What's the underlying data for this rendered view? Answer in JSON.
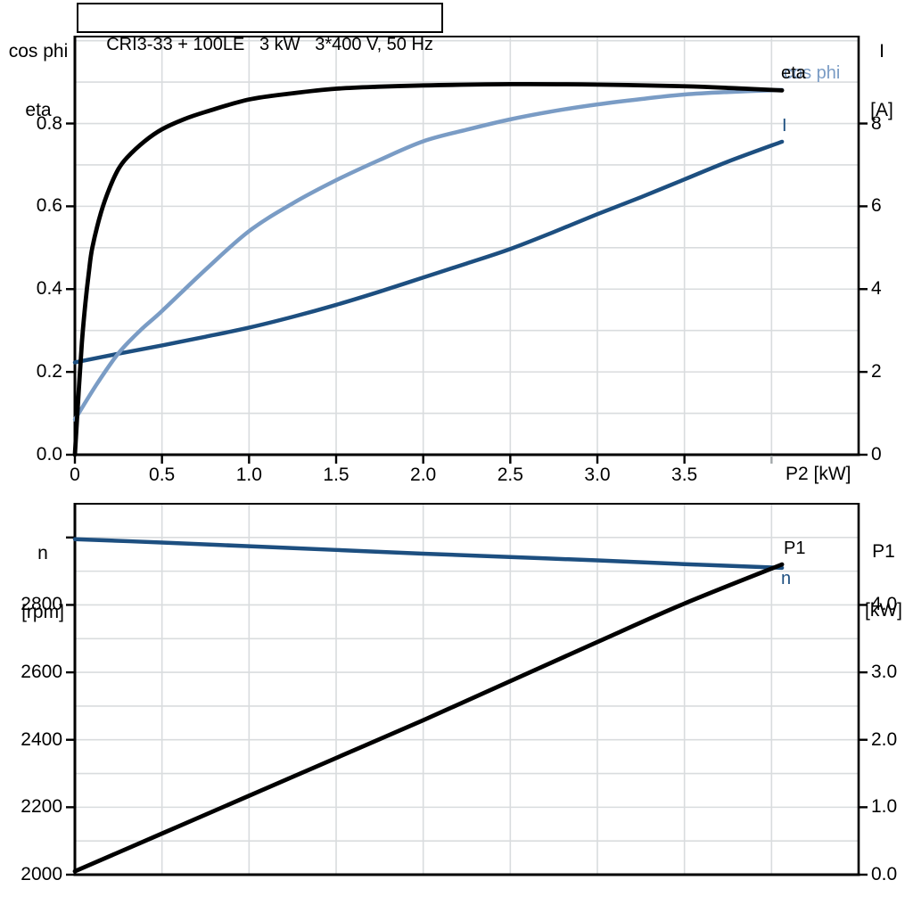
{
  "title_box": {
    "text": "CRI3-33 + 100LE   3 kW   3*400 V, 50 Hz"
  },
  "colors": {
    "black": "#000000",
    "dark_blue": "#1d4f80",
    "light_blue": "#7a9cc5",
    "grid": "#d9dcde",
    "gray_tick": "#a3a8ab",
    "background": "#ffffff"
  },
  "labels": {
    "eta": "eta",
    "cos_phi": "cos phi",
    "current": "I",
    "p1": "P1",
    "n": "n",
    "p2_axis": "P2 [kW]"
  },
  "chart_data": [
    {
      "id": "motor-efficiency-chart",
      "type": "line",
      "title": "CRI3-33 + 100LE   3 kW   3*400 V, 50 Hz",
      "grid": true,
      "x_axis": {
        "label": "P2 [kW]",
        "range": [
          0,
          4.5
        ],
        "grid_step": 0.5,
        "tick_values": [
          0,
          0.5,
          1,
          1.5,
          2,
          2.5,
          3,
          3.5
        ],
        "ticks": [
          "0",
          "0.5",
          "1.0",
          "1.5",
          "2.0",
          "2.5",
          "3.0",
          "3.5"
        ],
        "extra_tick_value": 4.0
      },
      "y_left": {
        "label_lines": [
          "cos phi",
          "eta"
        ],
        "range": [
          0,
          1.01
        ],
        "grid_step": 0.1,
        "tick_values": [
          0,
          0.2,
          0.4,
          0.6,
          0.8
        ],
        "ticks": [
          "0.0",
          "0.2",
          "0.4",
          "0.6",
          "0.8"
        ]
      },
      "y_right": {
        "label_lines": [
          "I",
          "[A]"
        ],
        "range": [
          0,
          10.1
        ],
        "tick_values": [
          0,
          2,
          4,
          6,
          8
        ],
        "ticks": [
          "0",
          "2",
          "4",
          "6",
          "8"
        ]
      },
      "series": [
        {
          "key": "I",
          "name": "I",
          "axis": "right",
          "unit": "A",
          "color_key": "dark_blue",
          "points": [
            [
              0,
              2.23
            ],
            [
              0.25,
              2.44
            ],
            [
              0.5,
              2.64
            ],
            [
              0.75,
              2.85
            ],
            [
              1,
              3.07
            ],
            [
              1.25,
              3.33
            ],
            [
              1.5,
              3.62
            ],
            [
              1.75,
              3.94
            ],
            [
              2,
              4.28
            ],
            [
              2.25,
              4.62
            ],
            [
              2.5,
              4.97
            ],
            [
              2.75,
              5.38
            ],
            [
              3,
              5.81
            ],
            [
              3.25,
              6.22
            ],
            [
              3.5,
              6.65
            ],
            [
              3.75,
              7.08
            ],
            [
              4.06,
              7.56
            ]
          ]
        },
        {
          "key": "cos_phi",
          "name": "cos phi",
          "axis": "left",
          "unit": "",
          "color_key": "light_blue",
          "points": [
            [
              0,
              0.085
            ],
            [
              0.125,
              0.17
            ],
            [
              0.25,
              0.245
            ],
            [
              0.375,
              0.3
            ],
            [
              0.5,
              0.347
            ],
            [
              0.75,
              0.447
            ],
            [
              1,
              0.54
            ],
            [
              1.25,
              0.607
            ],
            [
              1.5,
              0.663
            ],
            [
              1.75,
              0.712
            ],
            [
              2,
              0.757
            ],
            [
              2.25,
              0.785
            ],
            [
              2.5,
              0.81
            ],
            [
              2.75,
              0.83
            ],
            [
              3,
              0.846
            ],
            [
              3.25,
              0.859
            ],
            [
              3.5,
              0.87
            ],
            [
              3.75,
              0.876
            ],
            [
              4.06,
              0.881
            ]
          ]
        },
        {
          "key": "eta",
          "name": "eta",
          "axis": "left",
          "unit": "",
          "color_key": "black",
          "points": [
            [
              0,
              0
            ],
            [
              0.02,
              0.14
            ],
            [
              0.04,
              0.27
            ],
            [
              0.06,
              0.365
            ],
            [
              0.08,
              0.44
            ],
            [
              0.1,
              0.5
            ],
            [
              0.15,
              0.585
            ],
            [
              0.2,
              0.645
            ],
            [
              0.25,
              0.69
            ],
            [
              0.3,
              0.718
            ],
            [
              0.4,
              0.757
            ],
            [
              0.5,
              0.786
            ],
            [
              0.625,
              0.81
            ],
            [
              0.75,
              0.828
            ],
            [
              1,
              0.858
            ],
            [
              1.25,
              0.873
            ],
            [
              1.5,
              0.884
            ],
            [
              1.75,
              0.889
            ],
            [
              2,
              0.892
            ],
            [
              2.5,
              0.895
            ],
            [
              3,
              0.894
            ],
            [
              3.5,
              0.89
            ],
            [
              3.8,
              0.885
            ],
            [
              4.06,
              0.88
            ]
          ]
        }
      ]
    },
    {
      "id": "motor-speed-power-chart",
      "type": "line",
      "title": "",
      "grid": true,
      "x_axis": {
        "label": "",
        "range": [
          0,
          4.5
        ],
        "grid_step": 0.5,
        "tick_values": [],
        "ticks": []
      },
      "y_left": {
        "label_lines": [
          "n",
          "[rpm]"
        ],
        "range": [
          2000,
          3100
        ],
        "grid_step": 100,
        "tick_values": [
          2000,
          2200,
          2400,
          2600,
          2800
        ],
        "ticks": [
          "2000",
          "2200",
          "2400",
          "2600",
          "2800"
        ],
        "extra_tick_value": 3000
      },
      "y_right": {
        "label_lines": [
          "P1",
          "[kW]"
        ],
        "range": [
          0,
          5.5
        ],
        "tick_values": [
          0,
          1,
          2,
          3,
          4
        ],
        "ticks": [
          "0.0",
          "1.0",
          "2.0",
          "3.0",
          "4.0"
        ]
      },
      "series": [
        {
          "key": "n",
          "name": "n",
          "axis": "left",
          "unit": "rpm",
          "color_key": "dark_blue",
          "points": [
            [
              0,
              2995
            ],
            [
              0.5,
              2985
            ],
            [
              1,
              2974
            ],
            [
              1.5,
              2963
            ],
            [
              2,
              2952
            ],
            [
              2.5,
              2942
            ],
            [
              3,
              2932
            ],
            [
              3.5,
              2921
            ],
            [
              4.06,
              2910
            ]
          ]
        },
        {
          "key": "P1",
          "name": "P1",
          "axis": "right",
          "unit": "kW",
          "color_key": "black",
          "points": [
            [
              0,
              0.05
            ],
            [
              0.5,
              0.61
            ],
            [
              1,
              1.17
            ],
            [
              1.5,
              1.73
            ],
            [
              2,
              2.29
            ],
            [
              2.5,
              2.87
            ],
            [
              3,
              3.45
            ],
            [
              3.5,
              4.02
            ],
            [
              4.06,
              4.6
            ]
          ]
        }
      ]
    }
  ]
}
